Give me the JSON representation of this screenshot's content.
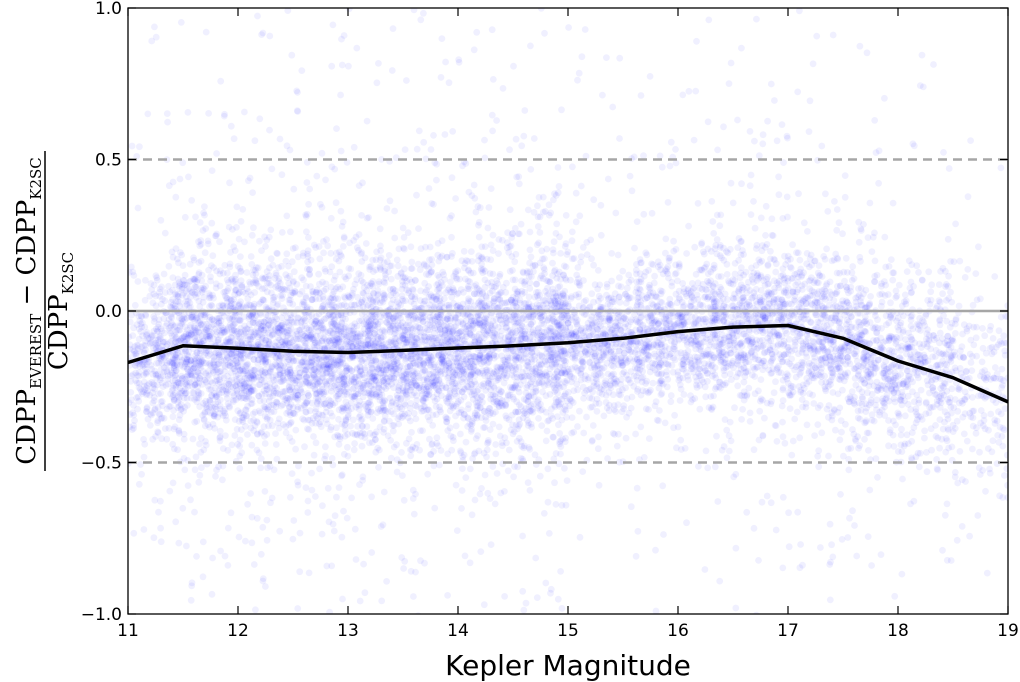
{
  "chart_data": {
    "type": "scatter",
    "xlabel": "Kepler Magnitude",
    "ylabel": {
      "numerator_base_1": "CDPP",
      "numerator_sub_1": "EVEREST",
      "numerator_minus": "−",
      "numerator_base_2": "CDPP",
      "numerator_sub_2": "K2SC",
      "denominator_base": "CDPP",
      "denominator_sub": "K2SC"
    },
    "xlim": [
      11,
      19
    ],
    "ylim": [
      -1.0,
      1.0
    ],
    "x_ticks": [
      "11",
      "12",
      "13",
      "14",
      "15",
      "16",
      "17",
      "18",
      "19"
    ],
    "y_ticks": [
      "−1.0",
      "−0.5",
      "0.0",
      "0.5",
      "1.0"
    ],
    "grid": false,
    "reference_lines": [
      {
        "y": 0.5,
        "style": "dashed",
        "color": "#a6a6a6"
      },
      {
        "y": 0.0,
        "style": "solid",
        "color": "#a6a6a6"
      },
      {
        "y": -0.5,
        "style": "dashed",
        "color": "#a6a6a6"
      }
    ],
    "scatter_color": "#0000ff",
    "scatter_alpha": 0.06,
    "median_line": {
      "color": "#000000",
      "x": [
        11.0,
        11.5,
        12.0,
        12.5,
        13.0,
        13.5,
        14.0,
        14.5,
        15.0,
        15.5,
        16.0,
        16.5,
        17.0,
        17.5,
        18.0,
        18.5,
        19.0
      ],
      "y": [
        -0.17,
        -0.115,
        -0.123,
        -0.133,
        -0.137,
        -0.13,
        -0.122,
        -0.115,
        -0.105,
        -0.09,
        -0.068,
        -0.053,
        -0.048,
        -0.09,
        -0.165,
        -0.22,
        -0.3
      ]
    }
  }
}
